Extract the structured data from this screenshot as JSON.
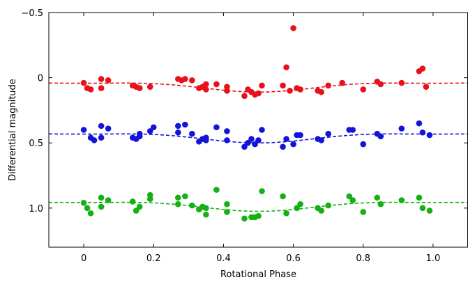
{
  "chart_data": {
    "type": "scatter",
    "title": "",
    "xlabel": "Rotational Phase",
    "ylabel": "Differential magnitude",
    "xlim": [
      -0.1,
      1.1
    ],
    "ylim": [
      1.3,
      -0.5
    ],
    "y_inverted": true,
    "grid": false,
    "x_ticks": [
      0,
      0.2,
      0.4,
      0.6,
      0.8,
      1.0
    ],
    "x_tick_labels": [
      "0",
      "0.2",
      "0.4",
      "0.6",
      "0.8",
      "1.0"
    ],
    "y_ticks": [
      -0.5,
      0,
      0.5,
      1.0
    ],
    "y_tick_labels": [
      "−0.5",
      "0",
      "0.5",
      "1.0"
    ],
    "series": [
      {
        "color": "#e8101a",
        "points": [
          [
            0.0,
            0.04
          ],
          [
            0.01,
            0.08
          ],
          [
            0.02,
            0.09
          ],
          [
            0.05,
            0.01
          ],
          [
            0.05,
            0.08
          ],
          [
            0.07,
            0.02
          ],
          [
            0.14,
            0.06
          ],
          [
            0.15,
            0.07
          ],
          [
            0.16,
            0.08
          ],
          [
            0.19,
            0.07
          ],
          [
            0.27,
            0.01
          ],
          [
            0.28,
            0.02
          ],
          [
            0.29,
            0.01
          ],
          [
            0.31,
            0.02
          ],
          [
            0.33,
            0.08
          ],
          [
            0.34,
            0.07
          ],
          [
            0.35,
            0.05
          ],
          [
            0.35,
            0.09
          ],
          [
            0.38,
            0.05
          ],
          [
            0.41,
            0.07
          ],
          [
            0.41,
            0.1
          ],
          [
            0.46,
            0.14
          ],
          [
            0.47,
            0.09
          ],
          [
            0.48,
            0.11
          ],
          [
            0.49,
            0.13
          ],
          [
            0.5,
            0.12
          ],
          [
            0.51,
            0.06
          ],
          [
            0.57,
            0.06
          ],
          [
            0.58,
            -0.08
          ],
          [
            0.59,
            0.1
          ],
          [
            0.6,
            -0.38
          ],
          [
            0.61,
            0.08
          ],
          [
            0.62,
            0.09
          ],
          [
            0.67,
            0.1
          ],
          [
            0.68,
            0.11
          ],
          [
            0.7,
            0.06
          ],
          [
            0.74,
            0.04
          ],
          [
            0.8,
            0.09
          ],
          [
            0.84,
            0.03
          ],
          [
            0.85,
            0.05
          ],
          [
            0.91,
            0.04
          ],
          [
            0.96,
            -0.05
          ],
          [
            0.97,
            -0.07
          ],
          [
            0.98,
            0.07
          ]
        ]
      },
      {
        "color": "#1414d8",
        "points": [
          [
            0.0,
            0.4
          ],
          [
            0.02,
            0.46
          ],
          [
            0.03,
            0.48
          ],
          [
            0.05,
            0.37
          ],
          [
            0.05,
            0.46
          ],
          [
            0.07,
            0.39
          ],
          [
            0.14,
            0.46
          ],
          [
            0.15,
            0.47
          ],
          [
            0.16,
            0.45
          ],
          [
            0.16,
            0.43
          ],
          [
            0.19,
            0.41
          ],
          [
            0.2,
            0.38
          ],
          [
            0.27,
            0.42
          ],
          [
            0.27,
            0.37
          ],
          [
            0.29,
            0.36
          ],
          [
            0.31,
            0.43
          ],
          [
            0.33,
            0.49
          ],
          [
            0.34,
            0.47
          ],
          [
            0.35,
            0.46
          ],
          [
            0.35,
            0.48
          ],
          [
            0.38,
            0.38
          ],
          [
            0.41,
            0.41
          ],
          [
            0.41,
            0.48
          ],
          [
            0.46,
            0.53
          ],
          [
            0.47,
            0.5
          ],
          [
            0.48,
            0.47
          ],
          [
            0.49,
            0.51
          ],
          [
            0.5,
            0.48
          ],
          [
            0.51,
            0.4
          ],
          [
            0.57,
            0.53
          ],
          [
            0.58,
            0.47
          ],
          [
            0.6,
            0.51
          ],
          [
            0.61,
            0.44
          ],
          [
            0.62,
            0.44
          ],
          [
            0.67,
            0.47
          ],
          [
            0.68,
            0.48
          ],
          [
            0.7,
            0.43
          ],
          [
            0.76,
            0.4
          ],
          [
            0.77,
            0.4
          ],
          [
            0.8,
            0.51
          ],
          [
            0.84,
            0.43
          ],
          [
            0.85,
            0.45
          ],
          [
            0.91,
            0.39
          ],
          [
            0.96,
            0.35
          ],
          [
            0.97,
            0.42
          ],
          [
            0.99,
            0.44
          ]
        ]
      },
      {
        "color": "#14b014",
        "points": [
          [
            0.0,
            0.96
          ],
          [
            0.01,
            1.0
          ],
          [
            0.02,
            1.04
          ],
          [
            0.05,
            0.92
          ],
          [
            0.05,
            0.99
          ],
          [
            0.07,
            0.94
          ],
          [
            0.14,
            0.95
          ],
          [
            0.15,
            1.02
          ],
          [
            0.16,
            0.99
          ],
          [
            0.19,
            0.93
          ],
          [
            0.19,
            0.9
          ],
          [
            0.27,
            0.92
          ],
          [
            0.27,
            0.97
          ],
          [
            0.29,
            0.91
          ],
          [
            0.31,
            0.98
          ],
          [
            0.33,
            1.01
          ],
          [
            0.34,
            0.99
          ],
          [
            0.35,
            1.0
          ],
          [
            0.35,
            1.05
          ],
          [
            0.38,
            0.86
          ],
          [
            0.41,
            0.97
          ],
          [
            0.41,
            1.03
          ],
          [
            0.46,
            1.08
          ],
          [
            0.48,
            1.07
          ],
          [
            0.49,
            1.07
          ],
          [
            0.5,
            1.06
          ],
          [
            0.51,
            0.87
          ],
          [
            0.57,
            0.91
          ],
          [
            0.58,
            1.04
          ],
          [
            0.61,
            1.0
          ],
          [
            0.62,
            0.97
          ],
          [
            0.67,
            1.0
          ],
          [
            0.68,
            1.02
          ],
          [
            0.7,
            0.98
          ],
          [
            0.76,
            0.91
          ],
          [
            0.77,
            0.94
          ],
          [
            0.8,
            1.03
          ],
          [
            0.84,
            0.92
          ],
          [
            0.85,
            0.97
          ],
          [
            0.91,
            0.94
          ],
          [
            0.96,
            0.92
          ],
          [
            0.97,
            1.0
          ],
          [
            0.99,
            1.02
          ]
        ]
      }
    ],
    "fit_curves": [
      {
        "color": "#e8101a",
        "offset": 0.065,
        "amplitude": 0.045
      },
      {
        "color": "#1414d8",
        "offset": 0.455,
        "amplitude": 0.045
      },
      {
        "color": "#14b014",
        "offset": 0.98,
        "amplitude": 0.045
      }
    ]
  }
}
